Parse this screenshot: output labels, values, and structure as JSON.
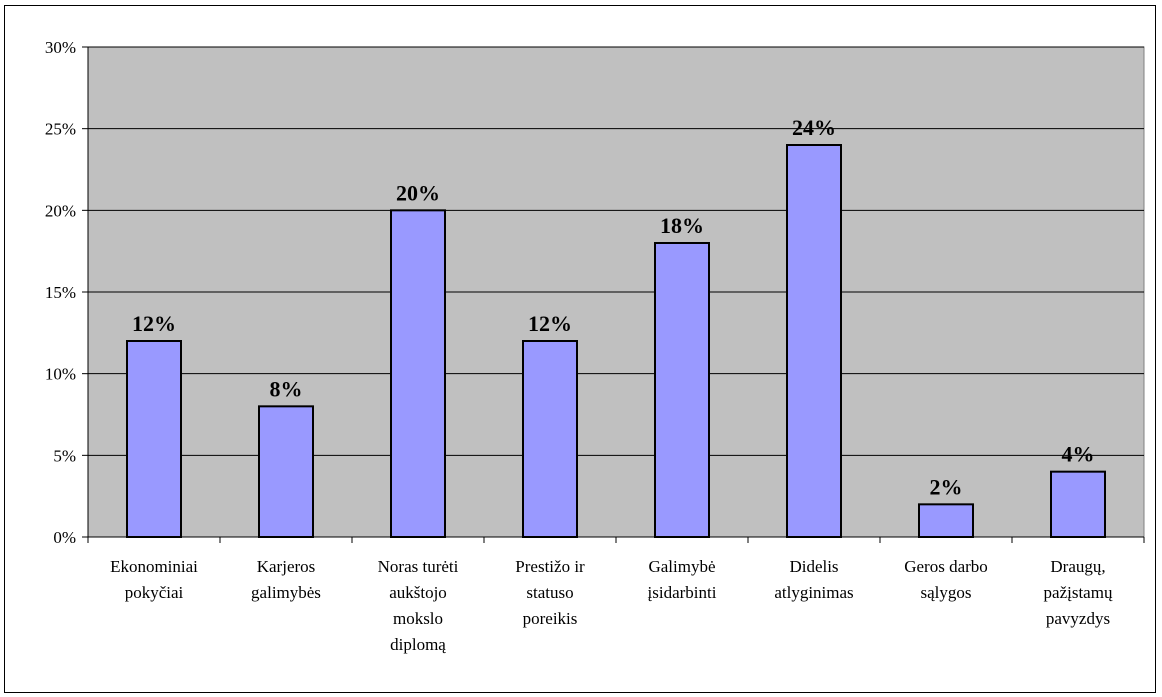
{
  "chart_data": {
    "type": "bar",
    "categories": [
      [
        "Ekonominiai",
        "pokyčiai"
      ],
      [
        "Karjeros",
        "galimybės"
      ],
      [
        "Noras turėti",
        "aukštojo",
        "mokslo",
        "diplomą"
      ],
      [
        "Prestižo ir",
        "statuso",
        "poreikis"
      ],
      [
        "Galimybė",
        "įsidarbinti"
      ],
      [
        "Didelis",
        "atlyginimas"
      ],
      [
        "Geros darbo",
        "sąlygos"
      ],
      [
        "Draugų,",
        "pažįstamų",
        "pavyzdys"
      ]
    ],
    "values": [
      12,
      8,
      20,
      12,
      18,
      24,
      2,
      4
    ],
    "data_labels": [
      "12%",
      "8%",
      "20%",
      "12%",
      "18%",
      "24%",
      "2%",
      "4%"
    ],
    "y_ticks": [
      "0%",
      "5%",
      "10%",
      "15%",
      "20%",
      "25%",
      "30%"
    ],
    "ylim": [
      0,
      30
    ],
    "grid": true,
    "legend": false,
    "colors": {
      "bar_fill": "#9999ff",
      "bar_stroke": "#000000",
      "plot_bg": "#c0c0c0",
      "grid": "#000000"
    }
  }
}
